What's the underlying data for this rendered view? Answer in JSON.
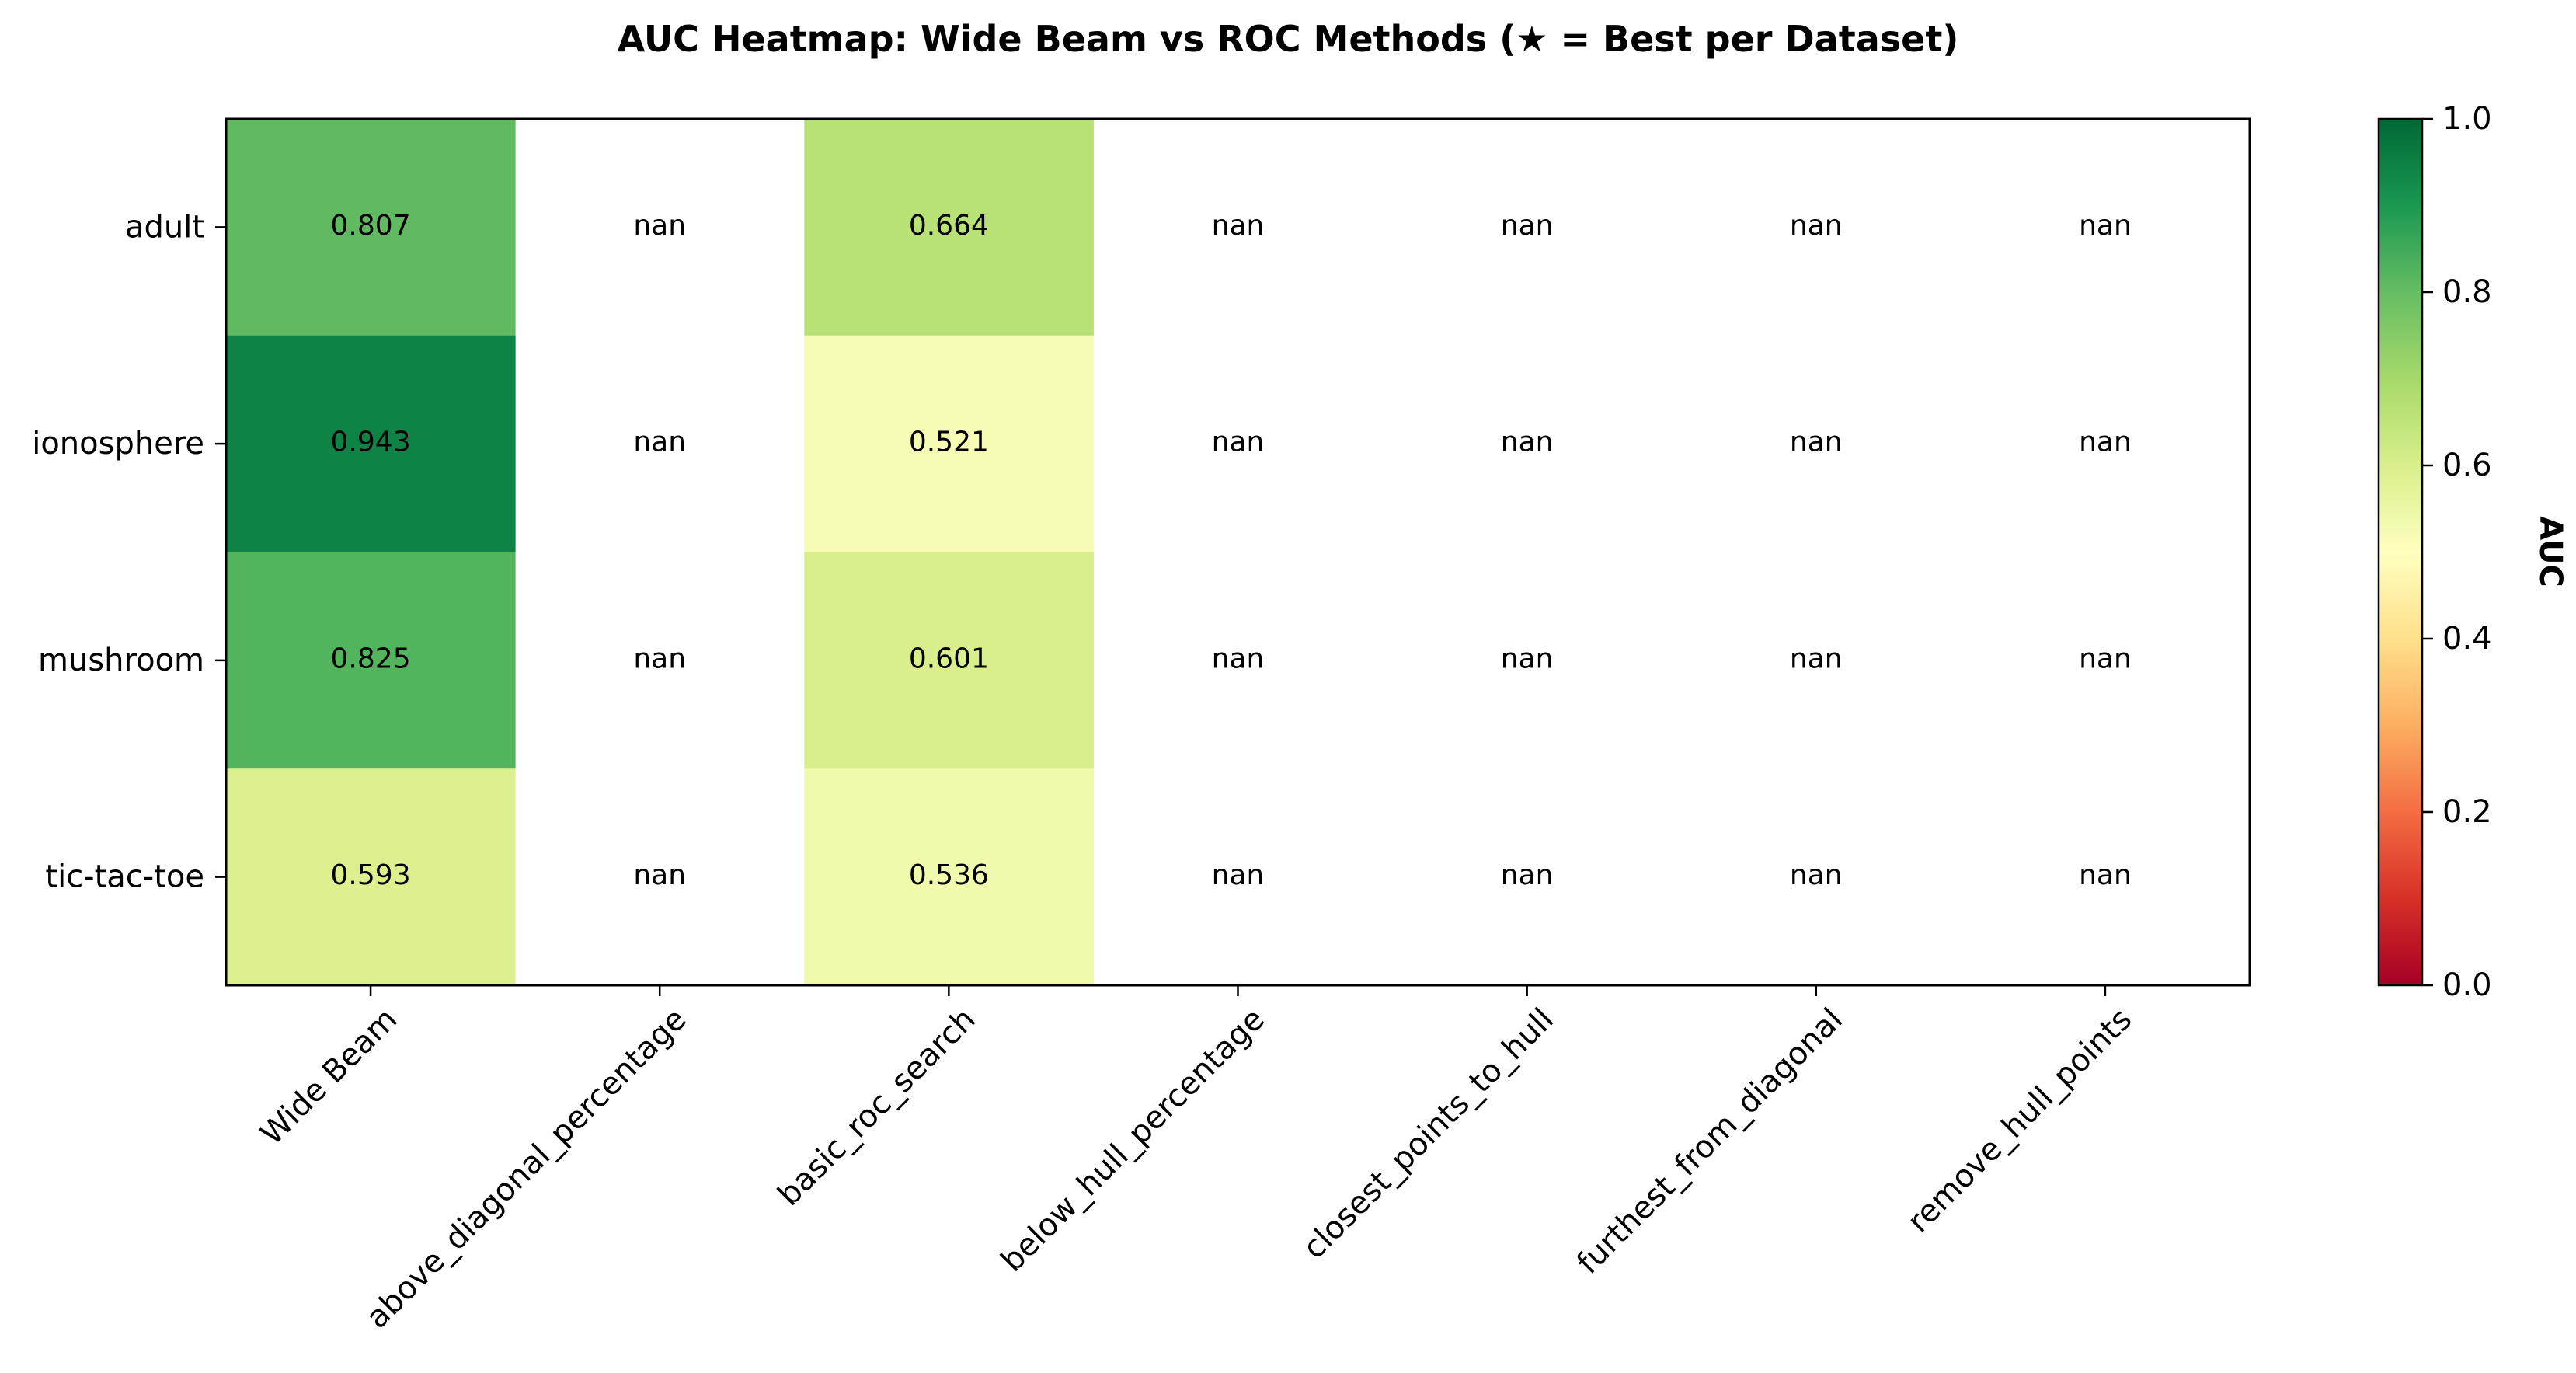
{
  "chart_data": {
    "type": "heatmap",
    "title": "AUC Heatmap: Wide Beam vs ROC Methods (★ = Best per Dataset)",
    "rows": [
      "adult",
      "ionosphere",
      "mushroom",
      "tic-tac-toe"
    ],
    "columns": [
      "Wide Beam",
      "above_diagonal_percentage",
      "basic_roc_search",
      "below_hull_percentage",
      "closest_points_to_hull",
      "furthest_from_diagonal",
      "remove_hull_points"
    ],
    "values": [
      [
        0.807,
        null,
        0.664,
        null,
        null,
        null,
        null
      ],
      [
        0.943,
        null,
        0.521,
        null,
        null,
        null,
        null
      ],
      [
        0.825,
        null,
        0.601,
        null,
        null,
        null,
        null
      ],
      [
        0.593,
        null,
        0.536,
        null,
        null,
        null,
        null
      ]
    ],
    "cell_labels": [
      [
        "0.807",
        "nan",
        "0.664",
        "nan",
        "nan",
        "nan",
        "nan"
      ],
      [
        "0.943",
        "nan",
        "0.521",
        "nan",
        "nan",
        "nan",
        "nan"
      ],
      [
        "0.825",
        "nan",
        "0.601",
        "nan",
        "nan",
        "nan",
        "nan"
      ],
      [
        "0.593",
        "nan",
        "0.536",
        "nan",
        "nan",
        "nan",
        "nan"
      ]
    ],
    "colorbar": {
      "label": "AUC",
      "range": [
        0,
        1
      ],
      "ticks": [
        "0.0",
        "0.2",
        "0.4",
        "0.6",
        "0.8",
        "1.0"
      ],
      "colormap": "RdYlGn",
      "colormap_stops": [
        "#a50026",
        "#d73027",
        "#f46d43",
        "#fdae61",
        "#fee08b",
        "#ffffbf",
        "#d9ef8b",
        "#a6d96a",
        "#66bd63",
        "#1a9850",
        "#006837"
      ]
    }
  }
}
